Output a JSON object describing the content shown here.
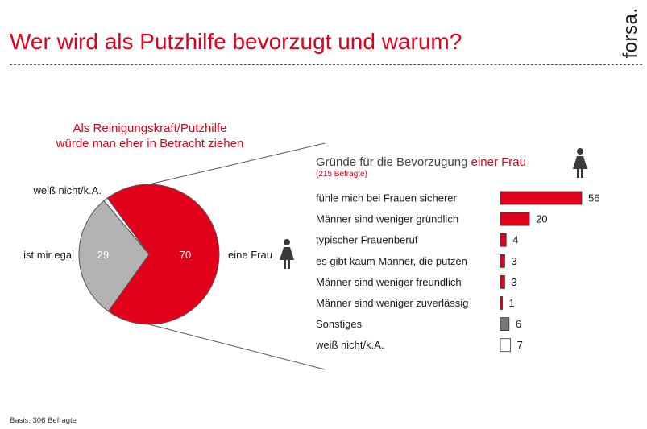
{
  "header": {
    "title": "Wer wird als Putzhilfe bevorzugt und warum?",
    "brand": "forsa."
  },
  "footer": {
    "basis": "Basis: 306 Befragte"
  },
  "colors": {
    "accent": "#e2001a",
    "gray": "#b3b3b3",
    "dark_gray": "#777777",
    "text": "#1a1a1a"
  },
  "chart_data": [
    {
      "type": "pie",
      "title_lines": [
        "Als Reinigungskraft/Putzhilfe",
        "würde man eher in Betracht ziehen"
      ],
      "slices": [
        {
          "label": "eine Frau",
          "value": 70,
          "color": "#e2001a",
          "value_label": "70",
          "icon": "female-person-icon"
        },
        {
          "label": "ist mir egal",
          "value": 29,
          "color": "#b3b3b3",
          "value_label": "29"
        },
        {
          "label": "weiß nicht/k.A.",
          "value": 1,
          "color": "#ffffff",
          "value_label": ""
        }
      ]
    },
    {
      "type": "bar",
      "orientation": "horizontal",
      "title_prefix": "Gründe für die Bevorzugung ",
      "title_highlight": "einer Frau",
      "subtitle": "(215 Befragte)",
      "icon": "female-person-icon",
      "categories": [
        "fühle mich bei Frauen sicherer",
        "Männer sind weniger gründlich",
        "typischer Frauenberuf",
        "es gibt kaum Männer, die putzen",
        "Männer sind weniger freundlich",
        "Männer sind weniger zuverlässig",
        "Sonstiges",
        "weiß nicht/k.A."
      ],
      "values": [
        56,
        20,
        4,
        3,
        3,
        1,
        6,
        7
      ],
      "colors": [
        "#e2001a",
        "#e2001a",
        "#e2001a",
        "#e2001a",
        "#e2001a",
        "#e2001a",
        "#777777",
        "#ffffff"
      ]
    }
  ]
}
